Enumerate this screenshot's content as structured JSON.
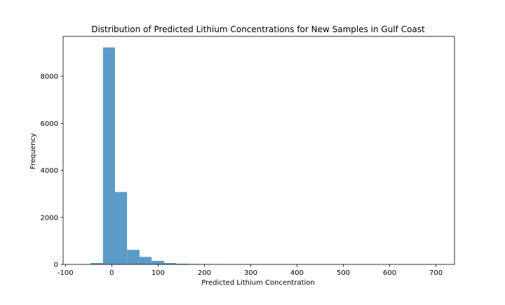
{
  "chart_data": {
    "type": "bar",
    "title": "Distribution of Predicted Lithium Concentrations for New Samples in Gulf Coast",
    "xlabel": "Predicted Lithium Concentration",
    "ylabel": "Frequency",
    "xlim": [
      -105,
      740
    ],
    "ylim": [
      0,
      9700
    ],
    "xticks": [
      -100,
      0,
      100,
      200,
      300,
      400,
      500,
      600,
      700
    ],
    "yticks": [
      0,
      2000,
      4000,
      6000,
      8000
    ],
    "grid": false,
    "bar_color": "#5b9bc8",
    "bins": [
      {
        "x0": -46,
        "x1": -19,
        "count": 60
      },
      {
        "x0": -19,
        "x1": 7,
        "count": 9230
      },
      {
        "x0": 7,
        "x1": 33,
        "count": 3080
      },
      {
        "x0": 33,
        "x1": 60,
        "count": 620
      },
      {
        "x0": 60,
        "x1": 86,
        "count": 320
      },
      {
        "x0": 86,
        "x1": 113,
        "count": 150
      },
      {
        "x0": 113,
        "x1": 139,
        "count": 60
      },
      {
        "x0": 139,
        "x1": 166,
        "count": 30
      },
      {
        "x0": 166,
        "x1": 192,
        "count": 20
      },
      {
        "x0": 192,
        "x1": 219,
        "count": 15
      },
      {
        "x0": 219,
        "x1": 245,
        "count": 10
      },
      {
        "x0": 245,
        "x1": 272,
        "count": 8
      },
      {
        "x0": 272,
        "x1": 298,
        "count": 5
      },
      {
        "x0": 298,
        "x1": 325,
        "count": 4
      },
      {
        "x0": 325,
        "x1": 351,
        "count": 3
      },
      {
        "x0": 351,
        "x1": 378,
        "count": 2
      },
      {
        "x0": 378,
        "x1": 404,
        "count": 2
      },
      {
        "x0": 404,
        "x1": 431,
        "count": 2
      },
      {
        "x0": 431,
        "x1": 457,
        "count": 1
      },
      {
        "x0": 457,
        "x1": 484,
        "count": 1
      },
      {
        "x0": 484,
        "x1": 510,
        "count": 1
      },
      {
        "x0": 510,
        "x1": 537,
        "count": 1
      },
      {
        "x0": 537,
        "x1": 563,
        "count": 1
      },
      {
        "x0": 563,
        "x1": 590,
        "count": 1
      },
      {
        "x0": 590,
        "x1": 616,
        "count": 1
      },
      {
        "x0": 616,
        "x1": 643,
        "count": 1
      },
      {
        "x0": 643,
        "x1": 669,
        "count": 1
      },
      {
        "x0": 669,
        "x1": 696,
        "count": 1
      },
      {
        "x0": 696,
        "x1": 722,
        "count": 1
      },
      {
        "x0": 722,
        "x1": 735,
        "count": 1
      }
    ]
  }
}
